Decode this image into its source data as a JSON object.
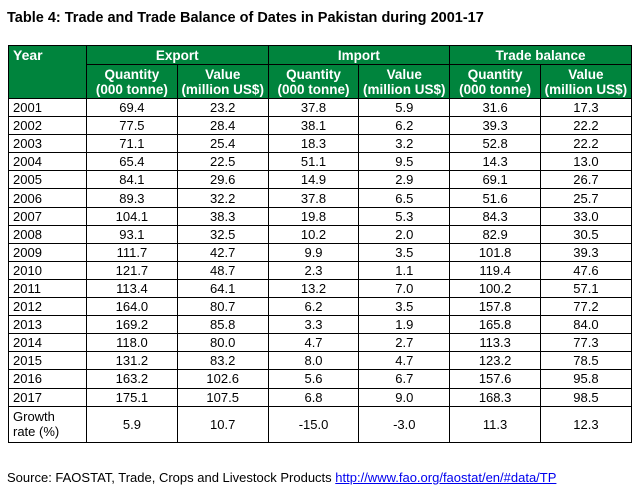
{
  "title": "Table 4: Trade and Trade Balance of Dates in Pakistan during 2001-17",
  "header": {
    "year": "Year",
    "groups": [
      "Export",
      "Import",
      "Trade balance"
    ],
    "sub": [
      {
        "line1": "Quantity",
        "line2": "(000 tonne)"
      },
      {
        "line1": "Value",
        "line2": "(million US$)"
      },
      {
        "line1": "Quantity",
        "line2": "(000 tonne)"
      },
      {
        "line1": "Value",
        "line2": "(million US$)"
      },
      {
        "line1": "Quantity",
        "line2": "(000 tonne)"
      },
      {
        "line1": "Value",
        "line2": "(million US$)"
      }
    ]
  },
  "rows": [
    [
      "2001",
      "69.4",
      "23.2",
      "37.8",
      "5.9",
      "31.6",
      "17.3"
    ],
    [
      "2002",
      "77.5",
      "28.4",
      "38.1",
      "6.2",
      "39.3",
      "22.2"
    ],
    [
      "2003",
      "71.1",
      "25.4",
      "18.3",
      "3.2",
      "52.8",
      "22.2"
    ],
    [
      "2004",
      "65.4",
      "22.5",
      "51.1",
      "9.5",
      "14.3",
      "13.0"
    ],
    [
      "2005",
      "84.1",
      "29.6",
      "14.9",
      "2.9",
      "69.1",
      "26.7"
    ],
    [
      "2006",
      "89.3",
      "32.2",
      "37.8",
      "6.5",
      "51.6",
      "25.7"
    ],
    [
      "2007",
      "104.1",
      "38.3",
      "19.8",
      "5.3",
      "84.3",
      "33.0"
    ],
    [
      "2008",
      "93.1",
      "32.5",
      "10.2",
      "2.0",
      "82.9",
      "30.5"
    ],
    [
      "2009",
      "111.7",
      "42.7",
      "9.9",
      "3.5",
      "101.8",
      "39.3"
    ],
    [
      "2010",
      "121.7",
      "48.7",
      "2.3",
      "1.1",
      "119.4",
      "47.6"
    ],
    [
      "2011",
      "113.4",
      "64.1",
      "13.2",
      "7.0",
      "100.2",
      "57.1"
    ],
    [
      "2012",
      "164.0",
      "80.7",
      "6.2",
      "3.5",
      "157.8",
      "77.2"
    ],
    [
      "2013",
      "169.2",
      "85.8",
      "3.3",
      "1.9",
      "165.8",
      "84.0"
    ],
    [
      "2014",
      "118.0",
      "80.0",
      "4.7",
      "2.7",
      "113.3",
      "77.3"
    ],
    [
      "2015",
      "131.2",
      "83.2",
      "8.0",
      "4.7",
      "123.2",
      "78.5"
    ],
    [
      "2016",
      "163.2",
      "102.6",
      "5.6",
      "6.7",
      "157.6",
      "95.8"
    ],
    [
      "2017",
      "175.1",
      "107.5",
      "6.8",
      "9.0",
      "168.3",
      "98.5"
    ]
  ],
  "growth": {
    "label_line1": "Growth",
    "label_line2": "rate (%)",
    "values": [
      "5.9",
      "10.7",
      "-15.0",
      "-3.0",
      "11.3",
      "12.3"
    ]
  },
  "source": {
    "text": "Source: FAOSTAT, Trade, Crops and Livestock Products ",
    "link": "http://www.fao.org/faostat/en/#data/TP"
  },
  "colors": {
    "header_bg": "#00843d",
    "header_text": "#ffffff",
    "link": "#0000ee"
  }
}
